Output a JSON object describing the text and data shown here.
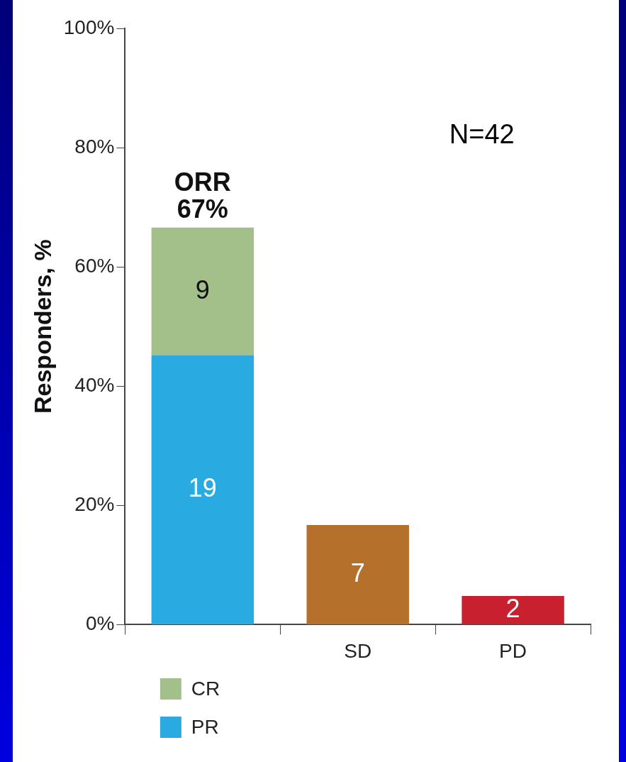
{
  "chart_data": {
    "type": "bar",
    "stacked": true,
    "ylabel": "Responders, %",
    "categories": [
      null,
      "SD",
      "PD"
    ],
    "series": [
      {
        "name": "PR",
        "color": "#29abe2",
        "values": [
          45.2,
          null,
          null
        ]
      },
      {
        "name": "CR",
        "color": "#a3bf8a",
        "values": [
          21.4,
          null,
          null
        ]
      },
      {
        "colors": [
          "#b5702b",
          "#b5702b",
          "#c8202f"
        ],
        "values": [
          null,
          16.7,
          4.8
        ]
      }
    ],
    "ylim": [
      0,
      100
    ],
    "yticks": [
      {
        "value": 0,
        "label": "0%"
      },
      {
        "value": 20,
        "label": "20%"
      },
      {
        "value": 40,
        "label": "40%"
      },
      {
        "value": 60,
        "label": "60%"
      },
      {
        "value": 80,
        "label": "80%"
      },
      {
        "value": 100,
        "label": "100%"
      }
    ],
    "annotations": [
      "ORR\n67%",
      "N=42",
      "19",
      "9",
      "7",
      "2"
    ],
    "grid": false,
    "legend": "bottom left"
  }
}
